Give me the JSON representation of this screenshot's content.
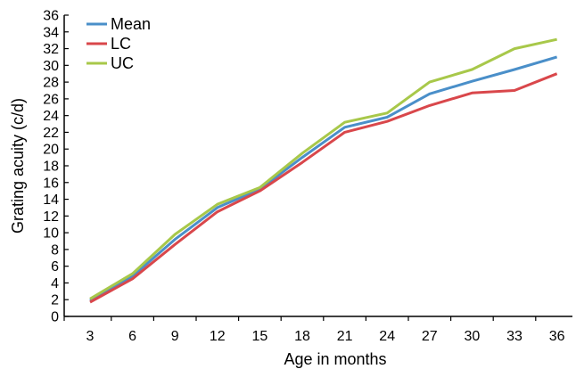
{
  "chart_data": {
    "type": "line",
    "title": "",
    "xlabel": "Age in months",
    "ylabel": "Grating acuity (c/d)",
    "x": [
      3,
      6,
      9,
      12,
      15,
      18,
      21,
      24,
      27,
      30,
      33,
      36
    ],
    "x_tick_labels": [
      "3",
      "6",
      "9",
      "12",
      "15",
      "18",
      "21",
      "24",
      "27",
      "30",
      "33",
      "36"
    ],
    "y_tick_labels": [
      "0",
      "2",
      "4",
      "6",
      "8",
      "10",
      "12",
      "14",
      "16",
      "18",
      "20",
      "22",
      "24",
      "26",
      "28",
      "30",
      "32",
      "34",
      "36"
    ],
    "ylim": [
      0,
      36
    ],
    "grid": false,
    "legend_position": "top-left",
    "series": [
      {
        "name": "Mean",
        "color": "#4a8fc9",
        "values": [
          1.9,
          4.8,
          9.2,
          13.0,
          15.2,
          19.0,
          22.6,
          23.8,
          26.6,
          28.1,
          29.5,
          31.0
        ]
      },
      {
        "name": "LC",
        "color": "#d9474b",
        "values": [
          1.7,
          4.5,
          8.6,
          12.5,
          15.0,
          18.4,
          22.0,
          23.3,
          25.2,
          26.7,
          27.0,
          29.0
        ]
      },
      {
        "name": "UC",
        "color": "#a8c84a",
        "values": [
          2.1,
          5.1,
          9.8,
          13.4,
          15.4,
          19.5,
          23.2,
          24.3,
          28.0,
          29.5,
          32.0,
          33.1
        ]
      }
    ]
  }
}
